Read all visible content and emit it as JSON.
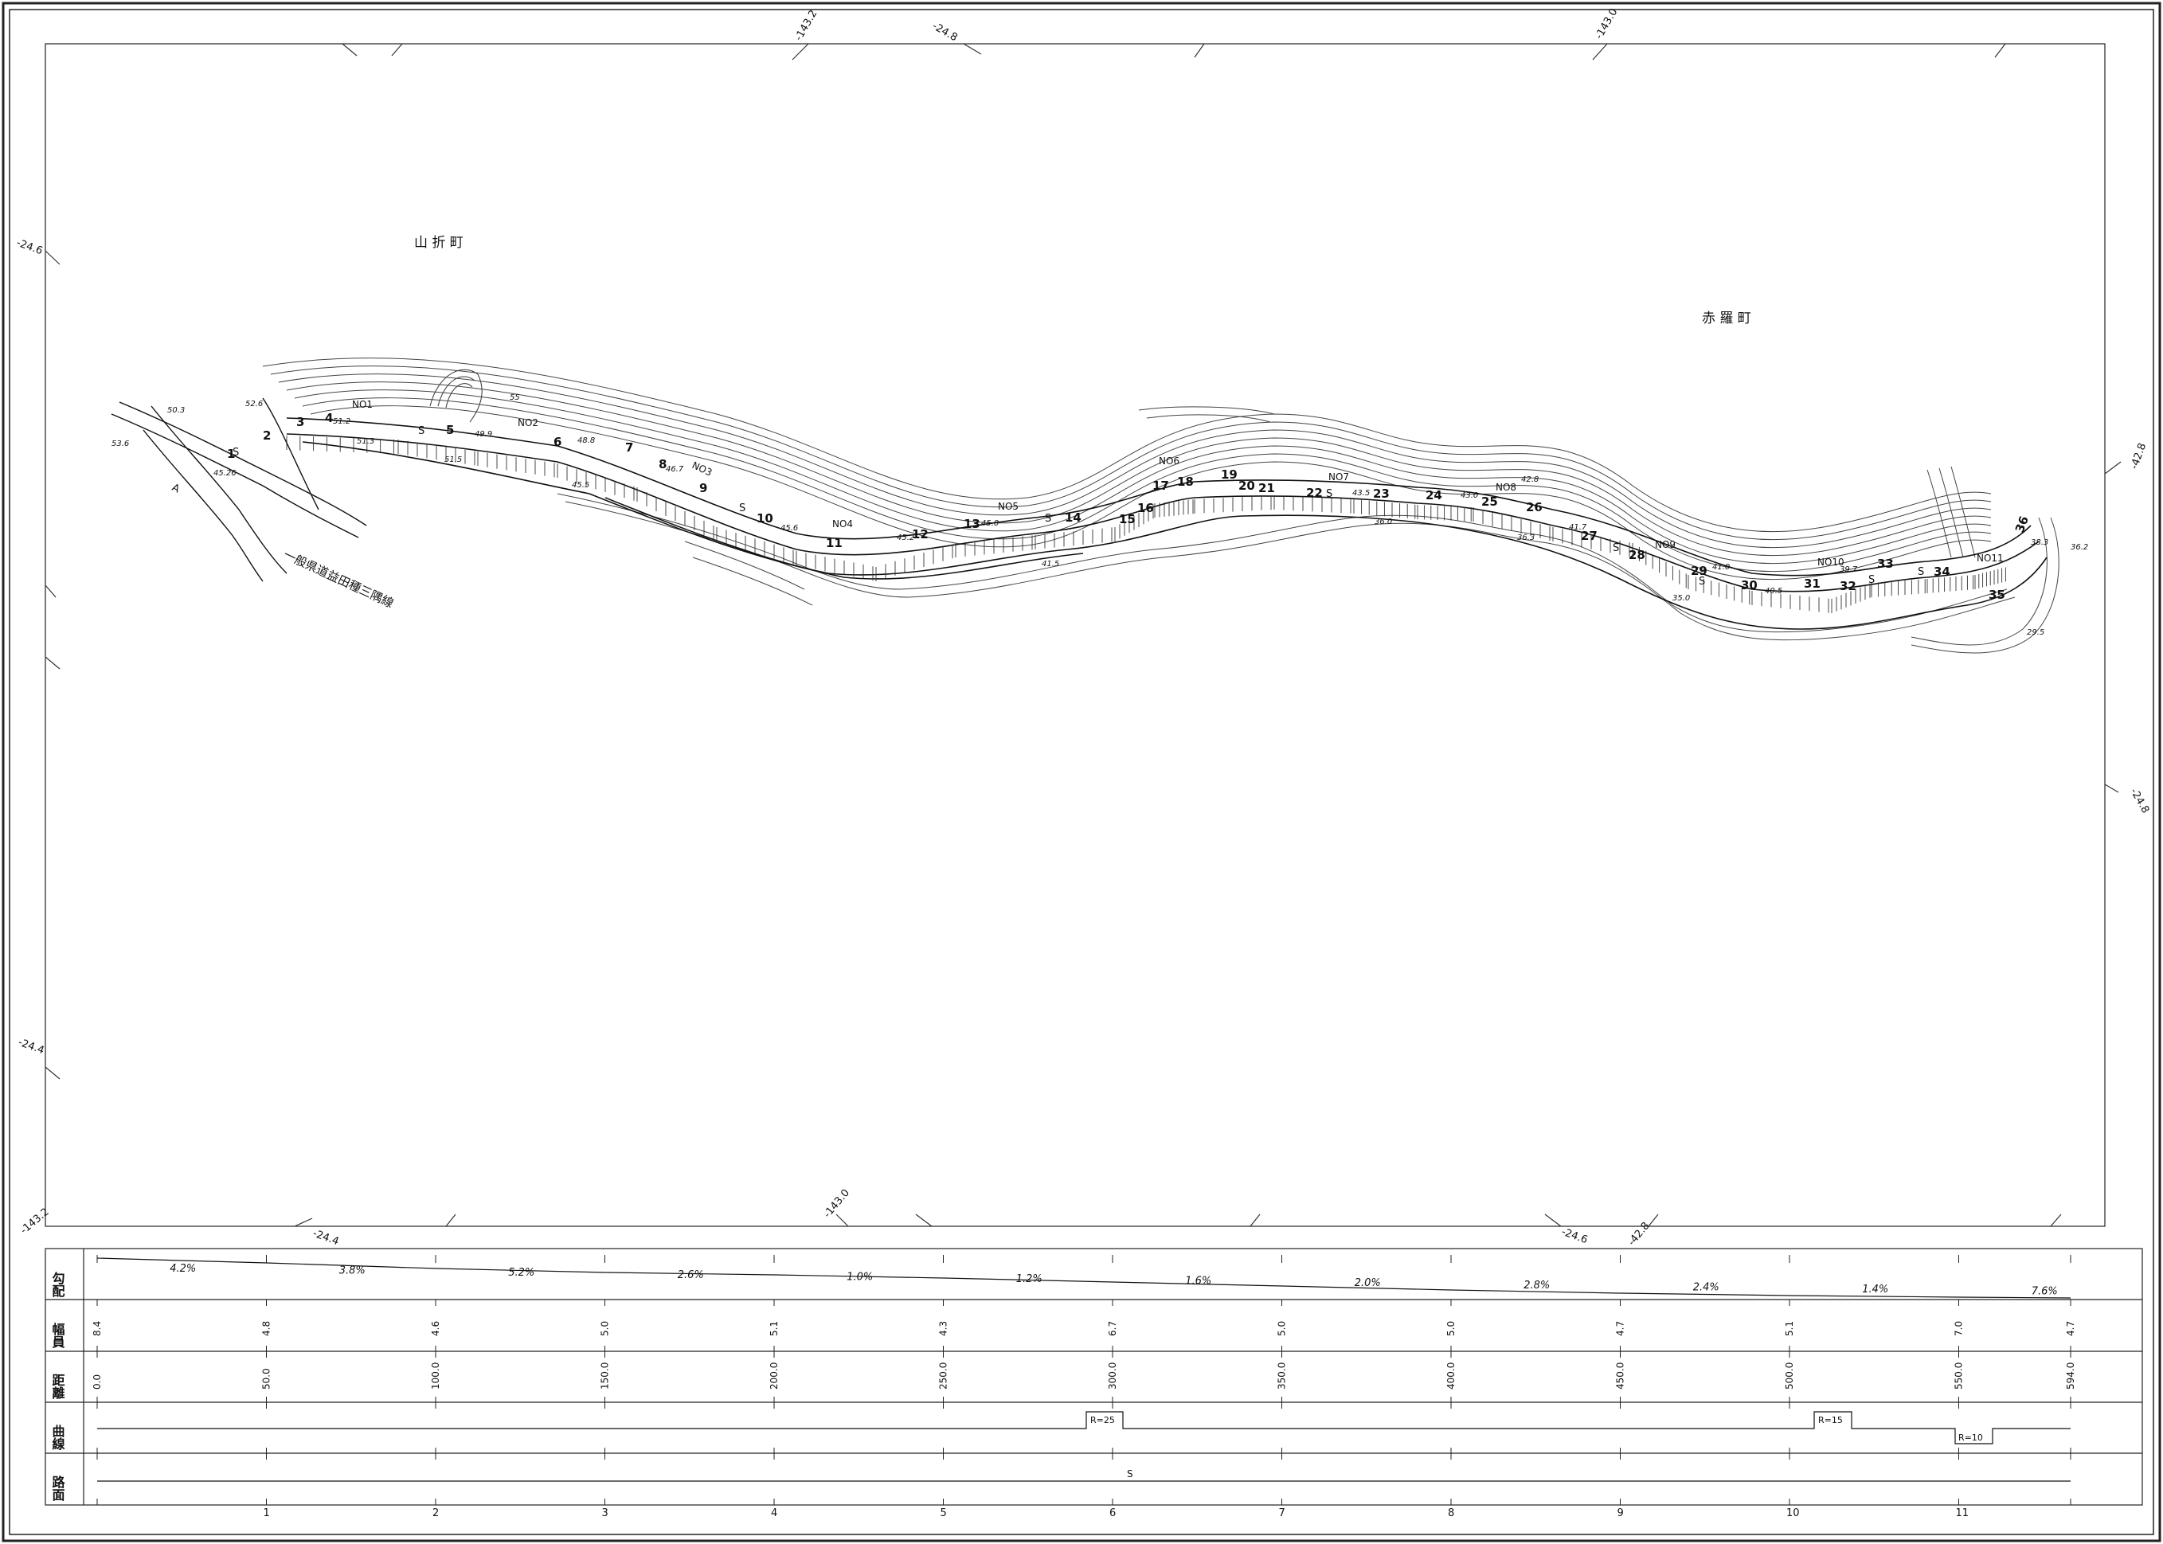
{
  "town_labels": [
    "山 折 町",
    "赤 羅 町"
  ],
  "road_name": "一般県道益田種三隅線",
  "road_a_label": "A",
  "grid_labels": [
    "-143.2",
    "-24.8",
    "-143.0",
    "-24.6",
    "-42.8",
    "-24.8",
    "-24.4",
    "-143.2",
    "-24.4",
    "-143.0",
    "-24.6",
    "-42.8"
  ],
  "station_labels": [
    "NO1",
    "NO2",
    "NO3",
    "NO4",
    "NO5",
    "NO6",
    "NO7",
    "NO8",
    "NO9",
    "NO10",
    "NO11"
  ],
  "section_numbers": [
    "1",
    "2",
    "3",
    "4",
    "5",
    "6",
    "7",
    "8",
    "9",
    "10",
    "11",
    "12",
    "13",
    "14",
    "15",
    "16",
    "17",
    "18",
    "19",
    "20",
    "21",
    "22",
    "23",
    "24",
    "25",
    "26",
    "27",
    "28",
    "29",
    "30",
    "31",
    "32",
    "33",
    "34",
    "35",
    "36"
  ],
  "surface_marks": [
    "S",
    "S",
    "S",
    "S",
    "S",
    "S",
    "S",
    "S",
    "S"
  ],
  "elevations": [
    "53.6",
    "50.3",
    "52.6",
    "51.2",
    "51.3",
    "51.5",
    "49.9",
    "55",
    "45.5",
    "48.8",
    "46.7",
    "45.6",
    "45.2",
    "45.0",
    "41.5",
    "43.5",
    "36.0",
    "43.0",
    "42.8",
    "36.3",
    "41.7",
    "41.0",
    "35.0",
    "40.5",
    "39.7",
    "38.3",
    "36.2",
    "29.5",
    "45.26"
  ],
  "profile": {
    "row_labels": [
      "勾配",
      "幅員",
      "距離",
      "曲線",
      "路面"
    ],
    "gradients": [
      "4.2%",
      "3.8%",
      "5.2%",
      "2.6%",
      "1.0%",
      "1.2%",
      "1.6%",
      "2.0%",
      "2.8%",
      "2.4%",
      "1.4%",
      "7.6%"
    ],
    "widths": [
      "8.4",
      "4.8",
      "4.6",
      "5.0",
      "5.1",
      "4.3",
      "6.7",
      "5.0",
      "5.0",
      "4.7",
      "5.1",
      "7.0",
      "4.7"
    ],
    "distances": [
      "0.0",
      "50.0",
      "100.0",
      "150.0",
      "200.0",
      "250.0",
      "300.0",
      "350.0",
      "400.0",
      "450.0",
      "500.0",
      "550.0",
      "594.0"
    ],
    "curves": [
      "R=25",
      "R=15",
      "R=10"
    ],
    "surface": "S",
    "station_numbers": [
      "1",
      "2",
      "3",
      "4",
      "5",
      "6",
      "7",
      "8",
      "9",
      "10",
      "11"
    ]
  }
}
